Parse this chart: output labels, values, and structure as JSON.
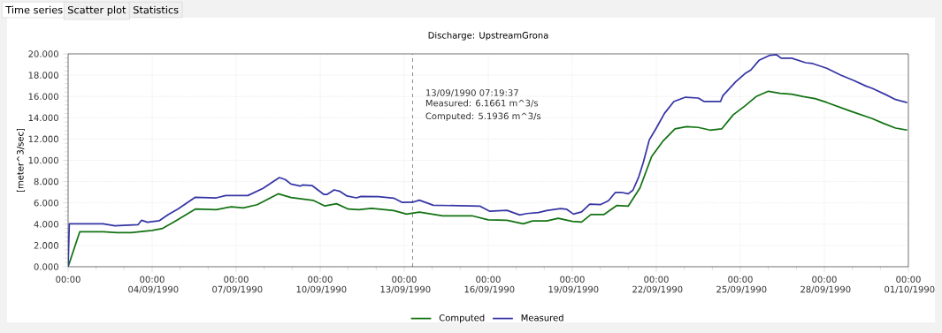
{
  "chart_data": {
    "type": "line",
    "title": "Discharge: UpstreamGrona",
    "ylabel": "[meter^3/sec]",
    "xlim": [
      "1990-09-01",
      "1990-10-01"
    ],
    "xticks": [
      {
        "value": "1990-09-01",
        "label": "00:00"
      },
      {
        "value": "1990-09-04",
        "label": "00:00 04/09/1990"
      },
      {
        "value": "1990-09-07",
        "label": "00:00 07/09/1990"
      },
      {
        "value": "1990-09-10",
        "label": "00:00 10/09/1990"
      },
      {
        "value": "1990-09-13",
        "label": "00:00 13/09/1990"
      },
      {
        "value": "1990-09-16",
        "label": "00:00 16/09/1990"
      },
      {
        "value": "1990-09-19",
        "label": "00:00 19/09/1990"
      },
      {
        "value": "1990-09-22",
        "label": "00:00 22/09/1990"
      },
      {
        "value": "1990-09-25",
        "label": "00:00 25/09/1990"
      },
      {
        "value": "1990-09-28",
        "label": "00:00 28/09/1990"
      },
      {
        "value": "1990-10-01",
        "label": "00:00 01/10/1990"
      }
    ],
    "ylim": [
      0,
      20
    ],
    "yticks": [
      {
        "value": 0,
        "label": "0.000"
      },
      {
        "value": 2,
        "label": "2.000"
      },
      {
        "value": 4,
        "label": "4.000"
      },
      {
        "value": 6,
        "label": "6.000"
      },
      {
        "value": 8,
        "label": "8.000"
      },
      {
        "value": 10,
        "label": "10.000"
      },
      {
        "value": 12,
        "label": "12.000"
      },
      {
        "value": 14,
        "label": "14.000"
      },
      {
        "value": 16,
        "label": "16.000"
      },
      {
        "value": 18,
        "label": "18.000"
      },
      {
        "value": 20,
        "label": "20.000"
      }
    ],
    "grid": true,
    "legend": "bottom",
    "marker": "none",
    "line_style": "solid",
    "series": [
      {
        "name": "Computed",
        "color": "#127212",
        "x": [
          "1990-09-01T00:00",
          "1990-09-01T10:00",
          "1990-09-02T06:00",
          "1990-09-02T18:00",
          "1990-09-03T06:00",
          "1990-09-04T00:00",
          "1990-09-04T09:00",
          "1990-09-04T20:00",
          "1990-09-05T13:00",
          "1990-09-06T07:00",
          "1990-09-06T20:00",
          "1990-09-07T06:00",
          "1990-09-07T18:00",
          "1990-09-08T12:00",
          "1990-09-08T23:00",
          "1990-09-09T18:00",
          "1990-09-10T04:00",
          "1990-09-10T14:00",
          "1990-09-11T00:00",
          "1990-09-11T09:00",
          "1990-09-11T20:00",
          "1990-09-12T15:00",
          "1990-09-13T02:00",
          "1990-09-13T13:00",
          "1990-09-14T09:00",
          "1990-09-15T10:00",
          "1990-09-16T00:00",
          "1990-09-16T16:00",
          "1990-09-17T06:00",
          "1990-09-17T14:00",
          "1990-09-18T02:00",
          "1990-09-18T12:00",
          "1990-09-19T00:00",
          "1990-09-19T08:00",
          "1990-09-19T16:00",
          "1990-09-20T03:00",
          "1990-09-20T14:00",
          "1990-09-21T00:00",
          "1990-09-21T10:00",
          "1990-09-21T20:00",
          "1990-09-22T06:00",
          "1990-09-22T16:00",
          "1990-09-23T02:00",
          "1990-09-23T12:00",
          "1990-09-23T22:00",
          "1990-09-24T08:00",
          "1990-09-24T18:00",
          "1990-09-25T04:00",
          "1990-09-25T14:00",
          "1990-09-26T00:00",
          "1990-09-26T10:00",
          "1990-09-26T20:00",
          "1990-09-27T06:00",
          "1990-09-27T16:00",
          "1990-09-28T02:00",
          "1990-09-28T22:00",
          "1990-09-29T17:00",
          "1990-09-30T03:00",
          "1990-09-30T13:00",
          "1990-09-30T23:00"
        ],
        "values": [
          0,
          3.29,
          3.29,
          3.2,
          3.2,
          3.41,
          3.6,
          4.3,
          5.42,
          5.37,
          5.64,
          5.53,
          5.83,
          6.85,
          6.51,
          6.24,
          5.71,
          5.92,
          5.42,
          5.37,
          5.48,
          5.28,
          4.95,
          5.14,
          4.79,
          4.79,
          4.4,
          4.37,
          4.04,
          4.31,
          4.31,
          4.56,
          4.26,
          4.2,
          4.9,
          4.9,
          5.75,
          5.7,
          7.41,
          10.35,
          11.84,
          12.95,
          13.17,
          13.09,
          12.84,
          12.95,
          14.28,
          15.11,
          16.02,
          16.49,
          16.29,
          16.21,
          15.99,
          15.8,
          15.44,
          14.64,
          13.92,
          13.45,
          13.03,
          12.84
        ]
      },
      {
        "name": "Measured",
        "color": "#3535a5",
        "x": [
          "1990-09-01T00:00",
          "1990-09-01T01:00",
          "1990-09-02T06:00",
          "1990-09-02T16:00",
          "1990-09-03T12:00",
          "1990-09-03T15:00",
          "1990-09-03T20:00",
          "1990-09-04T06:00",
          "1990-09-04T14:00",
          "1990-09-04T22:00",
          "1990-09-05T13:00",
          "1990-09-06T07:00",
          "1990-09-06T15:00",
          "1990-09-07T10:00",
          "1990-09-07T23:00",
          "1990-09-08T13:00",
          "1990-09-08T18:00",
          "1990-09-08T23:00",
          "1990-09-09T07:00",
          "1990-09-09T09:00",
          "1990-09-09T17:00",
          "1990-09-10T03:00",
          "1990-09-10T06:00",
          "1990-09-10T12:00",
          "1990-09-10T17:00",
          "1990-09-10T23:00",
          "1990-09-11T07:00",
          "1990-09-11T11:00",
          "1990-09-12T02:00",
          "1990-09-12T15:00",
          "1990-09-12T22:00",
          "1990-09-13T07:00",
          "1990-09-13T13:00",
          "1990-09-14T01:00",
          "1990-09-15T17:00",
          "1990-09-16T01:00",
          "1990-09-16T16:00",
          "1990-09-17T03:00",
          "1990-09-17T09:00",
          "1990-09-17T19:00",
          "1990-09-18T02:00",
          "1990-09-18T14:00",
          "1990-09-18T19:00",
          "1990-09-19T01:00",
          "1990-09-19T08:00",
          "1990-09-19T15:00",
          "1990-09-20T00:00",
          "1990-09-20T07:00",
          "1990-09-20T13:00",
          "1990-09-20T18:00",
          "1990-09-21T00:00",
          "1990-09-21T04:00",
          "1990-09-21T09:00",
          "1990-09-21T13:00",
          "1990-09-21T18:00",
          "1990-09-22T00:00",
          "1990-09-22T07:00",
          "1990-09-22T15:00",
          "1990-09-23T01:00",
          "1990-09-23T12:00",
          "1990-09-23T17:00",
          "1990-09-24T07:00",
          "1990-09-24T09:00",
          "1990-09-24T20:00",
          "1990-09-25T04:00",
          "1990-09-25T09:00",
          "1990-09-25T16:00",
          "1990-09-26T01:00",
          "1990-09-26T07:00",
          "1990-09-26T11:00",
          "1990-09-26T20:00",
          "1990-09-27T08:00",
          "1990-09-27T14:00",
          "1990-09-28T02:00",
          "1990-09-28T14:00",
          "1990-09-29T01:00",
          "1990-09-29T12:00",
          "1990-09-29T17:00",
          "1990-09-30T05:00",
          "1990-09-30T13:00",
          "1990-09-30T23:00"
        ],
        "values": [
          0,
          4.04,
          4.04,
          3.84,
          3.96,
          4.37,
          4.18,
          4.32,
          4.92,
          5.42,
          6.53,
          6.47,
          6.69,
          6.69,
          7.36,
          8.38,
          8.19,
          7.77,
          7.58,
          7.69,
          7.63,
          6.8,
          6.8,
          7.22,
          7.08,
          6.64,
          6.47,
          6.61,
          6.58,
          6.45,
          6.05,
          6.06,
          6.25,
          5.78,
          5.69,
          5.22,
          5.3,
          4.86,
          5.0,
          5.09,
          5.28,
          5.47,
          5.41,
          4.95,
          5.15,
          5.89,
          5.83,
          6.2,
          6.99,
          6.99,
          6.85,
          7.2,
          8.46,
          9.85,
          11.92,
          13.03,
          14.41,
          15.52,
          15.93,
          15.85,
          15.52,
          15.52,
          16.07,
          17.37,
          18.15,
          18.48,
          19.39,
          19.86,
          19.92,
          19.59,
          19.59,
          19.17,
          19.09,
          18.65,
          18.01,
          17.51,
          16.96,
          16.76,
          16.15,
          15.71,
          15.43
        ]
      }
    ],
    "ref_lines": [
      {
        "axis": "x",
        "value": "1990-09-13T07:19",
        "label": "13/09/1990 07:19:37",
        "color": "#000000",
        "line_style": "dashed"
      }
    ],
    "annotations": [
      "Time series",
      "Scatter plot",
      "Statistics",
      "Measured:   6.1661 m^3/s",
      "Computed:   5.1936 m^3/s"
    ]
  }
}
